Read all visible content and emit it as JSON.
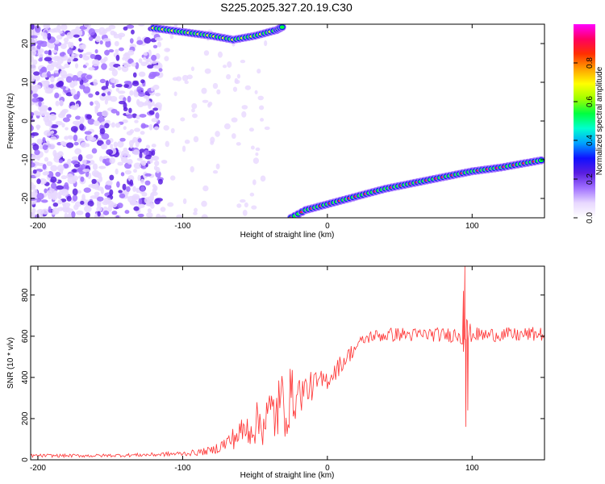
{
  "title": "S225.2025.327.20.19.C30",
  "chart_data": [
    {
      "type": "heatmap",
      "name": "spectrogram",
      "xlabel": "Height of straight line (km)",
      "ylabel": "Frequency (Hz)",
      "xlim": [
        -205,
        150
      ],
      "ylim": [
        -25,
        25
      ],
      "xticks": [
        -200,
        -100,
        0,
        100
      ],
      "yticks": [
        -20,
        -10,
        0,
        10,
        20
      ],
      "colorbar": {
        "label": "Normalized spectral amplitude",
        "range": [
          0,
          1
        ],
        "ticks": [
          0.0,
          0.2,
          0.4,
          0.6,
          0.8
        ],
        "tick_labels": [
          "0.0",
          "0.2",
          "0.4",
          "0.6",
          "0.8"
        ],
        "colors": [
          "#ffffff",
          "#e8d8ff",
          "#a070ff",
          "#5a1ee0",
          "#1010ff",
          "#00a0ff",
          "#00ffd0",
          "#00ff40",
          "#a0ff00",
          "#ffff00",
          "#ffa000",
          "#ff3000",
          "#ff0060",
          "#ff00ff"
        ]
      },
      "features": [
        {
          "description": "diffuse noise region",
          "x_range": [
            -205,
            -115
          ],
          "f_range": [
            -25,
            25
          ],
          "amplitude": 0.1
        },
        {
          "description": "rising tone",
          "points": [
            [
              -25,
              -25
            ],
            [
              -15,
              -23
            ],
            [
              0,
              -21.5
            ],
            [
              20,
              -19.5
            ],
            [
              40,
              -17.5
            ],
            [
              60,
              -16
            ],
            [
              80,
              -14.5
            ],
            [
              100,
              -13
            ],
            [
              120,
              -12
            ],
            [
              150,
              -10
            ]
          ],
          "amplitude": 0.9
        },
        {
          "description": "upper band",
          "points": [
            [
              -120,
              24
            ],
            [
              -100,
              23
            ],
            [
              -80,
              22
            ],
            [
              -65,
              21
            ],
            [
              -50,
              22
            ],
            [
              -35,
              23.5
            ],
            [
              -30,
              24.5
            ]
          ],
          "amplitude": 0.7
        }
      ]
    },
    {
      "type": "line",
      "name": "snr",
      "xlabel": "Height of straight line (km)",
      "ylabel": "SNR (10 * v/v)",
      "xlim": [
        -205,
        150
      ],
      "ylim": [
        0,
        940
      ],
      "xticks": [
        -200,
        -100,
        0,
        100
      ],
      "yticks": [
        0,
        200,
        400,
        600,
        800
      ],
      "color": "#ff3333",
      "series": [
        {
          "name": "SNR",
          "x": [
            -205,
            -180,
            -160,
            -140,
            -120,
            -100,
            -90,
            -80,
            -70,
            -60,
            -50,
            -40,
            -35,
            -30,
            -25,
            -20,
            -15,
            -10,
            -5,
            0,
            5,
            10,
            15,
            20,
            25,
            30,
            40,
            50,
            60,
            70,
            80,
            90,
            94,
            95,
            96,
            100,
            110,
            120,
            130,
            140,
            150
          ],
          "y": [
            20,
            20,
            20,
            22,
            25,
            30,
            35,
            45,
            80,
            130,
            170,
            210,
            240,
            270,
            300,
            320,
            340,
            360,
            375,
            390,
            430,
            470,
            510,
            550,
            580,
            600,
            605,
            610,
            605,
            610,
            605,
            610,
            620,
            620,
            615,
            610,
            605,
            610,
            605,
            610,
            610
          ],
          "noise": [
            8,
            8,
            8,
            8,
            10,
            12,
            15,
            20,
            40,
            70,
            100,
            150,
            170,
            180,
            150,
            100,
            80,
            70,
            60,
            50,
            50,
            45,
            40,
            35,
            30,
            30,
            35,
            35,
            35,
            35,
            35,
            40,
            100,
            100,
            80,
            35,
            35,
            35,
            35,
            35,
            35
          ]
        }
      ],
      "spikes": [
        {
          "x": 94,
          "y": 820
        },
        {
          "x": 95,
          "y": 940
        },
        {
          "x": 95.6,
          "y": 160
        },
        {
          "x": 96.2,
          "y": 680
        },
        {
          "x": 97,
          "y": 240
        }
      ]
    }
  ]
}
